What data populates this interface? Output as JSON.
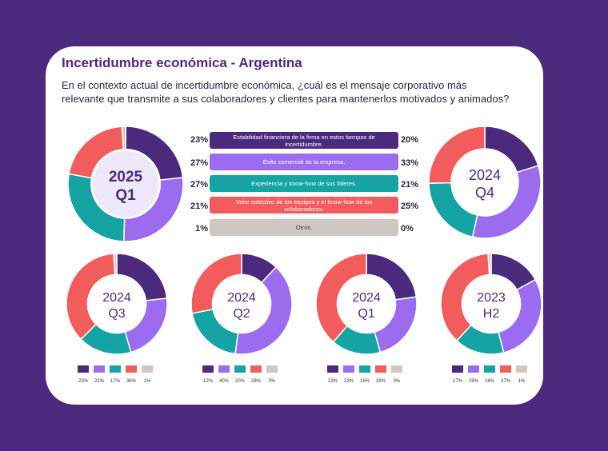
{
  "header": {
    "title": "Incertidumbre económica - Argentina",
    "subtitle": "En el contexto actual de incertidumbre económica, ¿cuál es el mensaje corporativo más relevante que transmite a sus colaboradores y clientes para mantenerlos motivados y animados?"
  },
  "colors": [
    "#4b2a7d",
    "#9b6cf0",
    "#15a3a3",
    "#f25c5c",
    "#cfc8c2"
  ],
  "chart_data": [
    {
      "type": "donut",
      "id": "2025-q1",
      "center_label": [
        "2025",
        "Q1"
      ],
      "categories": [
        "Estabilidad financiera de la firma en estos tiempos de incertidumbre.",
        "Éxito comercial de la empresa.",
        "Experiencia y know-how de sus líderes.",
        "Valor colectivo de los equipos y el know-how de los colaboradores.",
        "Otros."
      ],
      "values": [
        23,
        27,
        27,
        21,
        1
      ],
      "value_labels": [
        "23%",
        "27%",
        "27%",
        "21%",
        "1%"
      ]
    },
    {
      "type": "donut",
      "id": "2024-q4",
      "center_label": [
        "2024",
        "Q4"
      ],
      "categories": [
        "Estabilidad financiera de la firma en estos tiempos de incertidumbre.",
        "Éxito comercial de la empresa.",
        "Experiencia y know-how de sus líderes.",
        "Valor colectivo de los equipos y el know-how de los colaboradores.",
        "Otros."
      ],
      "values": [
        20,
        33,
        21,
        25,
        0
      ],
      "value_labels": [
        "20%",
        "33%",
        "21%",
        "25%",
        "0%"
      ]
    },
    {
      "type": "donut",
      "id": "2024-q3",
      "center_label": [
        "2024",
        "Q3"
      ],
      "categories": [
        "Estabilidad financiera de la firma en estos tiempos de incertidumbre.",
        "Éxito comercial de la empresa.",
        "Experiencia y know-how de sus líderes.",
        "Valor colectivo de los equipos y el know-how de los colaboradores.",
        "Otros."
      ],
      "values": [
        23,
        22,
        17,
        36,
        1
      ],
      "value_labels": [
        "23%",
        "22%",
        "17%",
        "36%",
        "1%"
      ]
    },
    {
      "type": "donut",
      "id": "2024-q2",
      "center_label": [
        "2024",
        "Q2"
      ],
      "categories": [
        "Estabilidad financiera de la firma en estos tiempos de incertidumbre.",
        "Éxito comercial de la empresa.",
        "Experiencia y know-how de sus líderes.",
        "Valor colectivo de los equipos y el know-how de los colaboradores.",
        "Otros."
      ],
      "values": [
        12,
        40,
        20,
        28,
        0
      ],
      "value_labels": [
        "12%",
        "40%",
        "20%",
        "28%",
        "0%"
      ]
    },
    {
      "type": "donut",
      "id": "2024-q1",
      "center_label": [
        "2024",
        "Q1"
      ],
      "categories": [
        "Estabilidad financiera de la firma en estos tiempos de incertidumbre.",
        "Éxito comercial de la empresa.",
        "Experiencia y know-how de sus líderes.",
        "Valor colectivo de los equipos y el know-how de los colaboradores.",
        "Otros."
      ],
      "values": [
        23,
        23,
        16,
        39,
        0
      ],
      "value_labels": [
        "23%",
        "23%",
        "16%",
        "39%",
        "0%"
      ]
    },
    {
      "type": "donut",
      "id": "2023-h2",
      "center_label": [
        "2023",
        "H2"
      ],
      "categories": [
        "Estabilidad financiera de la firma en estos tiempos de incertidumbre.",
        "Éxito comercial de la empresa.",
        "Experiencia y know-how de sus líderes.",
        "Valor colectivo de los equipos y el know-how de los colaboradores.",
        "Otros."
      ],
      "values": [
        17,
        29,
        16,
        37,
        1
      ],
      "value_labels": [
        "17%",
        "29%",
        "16%",
        "37%",
        "1%"
      ]
    }
  ],
  "comparison": {
    "rows": [
      {
        "label": "Estabilidad financiera de la firma en estos tiempos de incertidumbre.",
        "left": "23%",
        "right": "20%"
      },
      {
        "label": "Éxito comercial de la empresa.",
        "left": "27%",
        "right": "33%"
      },
      {
        "label": "Experiencia y know-how de sus líderes.",
        "left": "27%",
        "right": "21%"
      },
      {
        "label": "Valor colectivo de los equipos y el know-how de los colaboradores.",
        "left": "21%",
        "right": "25%"
      },
      {
        "label": "Otros.",
        "left": "1%",
        "right": "0%"
      }
    ]
  }
}
